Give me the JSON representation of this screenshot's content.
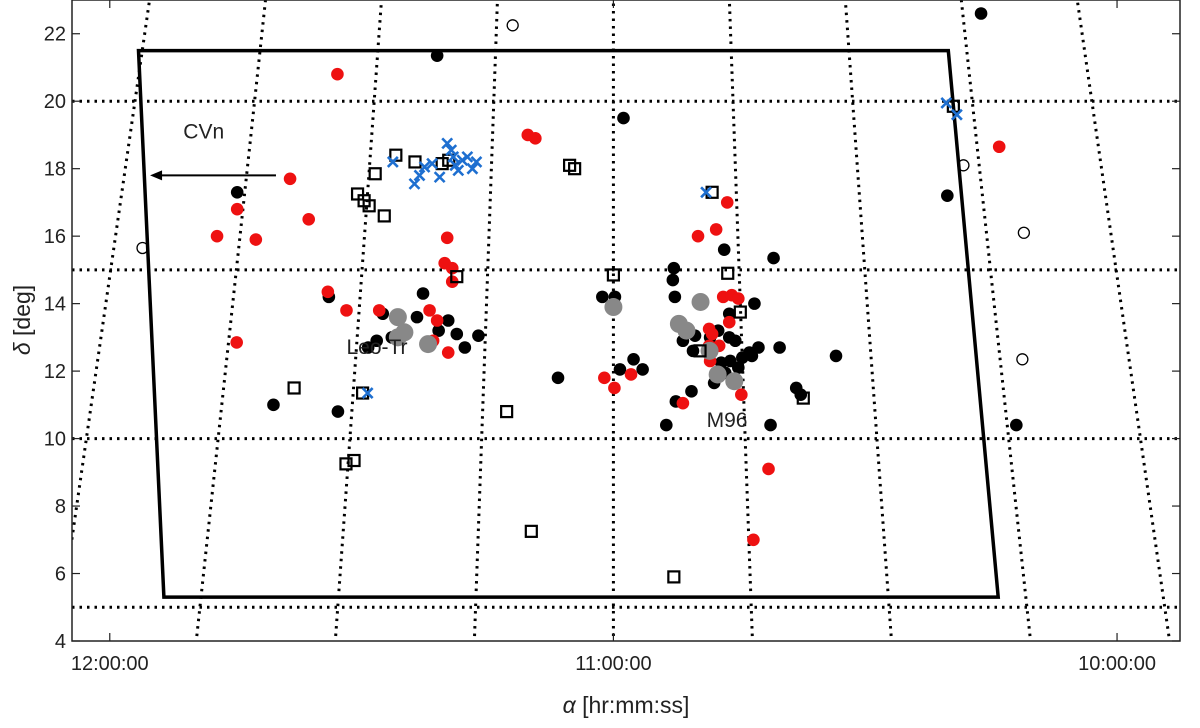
{
  "chart_data": {
    "type": "scatter",
    "xlabel_symbol": "α",
    "xlabel_text": " [hr:mm:ss]",
    "ylabel_symbol": "δ",
    "ylabel_text": " [deg]",
    "x_reversed": true,
    "xlim_hours": [
      9.875,
      12.075
    ],
    "ylim": [
      4,
      23
    ],
    "xticks": [
      {
        "value": 12.0,
        "label": "12:00:00"
      },
      {
        "value": 11.0,
        "label": "11:00:00"
      },
      {
        "value": 10.0,
        "label": "10:00:00"
      }
    ],
    "yticks": [
      4,
      6,
      8,
      10,
      12,
      14,
      16,
      18,
      20,
      22
    ],
    "grid": {
      "style": "dotted",
      "dec_lines": [
        5,
        10,
        15,
        20
      ],
      "ra_lines_hours": [
        12.0,
        11.75,
        11.5,
        11.25,
        11.0,
        10.75,
        10.5,
        10.25,
        10.0
      ]
    },
    "footprint_corners": [
      {
        "ra": 11.943,
        "dec": 21.5
      },
      {
        "ra": 10.335,
        "dec": 21.5
      },
      {
        "ra": 10.236,
        "dec": 5.3
      },
      {
        "ra": 11.8925,
        "dec": 5.3
      }
    ],
    "annotations": [
      {
        "text": "CVn",
        "ra": 11.854,
        "dec": 18.9
      },
      {
        "text": "Leo-Tr",
        "ra": 11.53,
        "dec": 12.5
      },
      {
        "text": "M96",
        "ra": 10.815,
        "dec": 10.35
      }
    ],
    "arrow": {
      "from": {
        "ra": 11.67,
        "dec": 17.8
      },
      "to": {
        "ra": 11.92,
        "dec": 17.8
      }
    },
    "colors": {
      "black": "#000000",
      "red": "#ee1111",
      "gray": "#888888",
      "blue": "#1e6fd0",
      "line": "#000000"
    },
    "series": [
      {
        "marker": "filled-circle-black",
        "points": [
          [
            11.747,
            17.3
          ],
          [
            11.35,
            21.35
          ],
          [
            10.27,
            22.6
          ],
          [
            10.337,
            17.2
          ],
          [
            10.98,
            19.5
          ],
          [
            11.565,
            14.2
          ],
          [
            11.547,
            10.8
          ],
          [
            11.675,
            11.0
          ],
          [
            11.487,
            12.7
          ],
          [
            11.47,
            12.9
          ],
          [
            11.458,
            13.7
          ],
          [
            11.44,
            13.0
          ],
          [
            11.423,
            13.0
          ],
          [
            11.39,
            13.6
          ],
          [
            11.378,
            14.3
          ],
          [
            11.347,
            13.2
          ],
          [
            11.328,
            13.5
          ],
          [
            11.311,
            13.1
          ],
          [
            11.295,
            12.7
          ],
          [
            11.268,
            13.05
          ],
          [
            11.022,
            14.2
          ],
          [
            10.997,
            14.2
          ],
          [
            11.002,
            13.9
          ],
          [
            11.11,
            11.8
          ],
          [
            10.987,
            12.05
          ],
          [
            10.96,
            12.35
          ],
          [
            10.942,
            12.05
          ],
          [
            10.895,
            10.4
          ],
          [
            10.882,
            14.7
          ],
          [
            10.88,
            15.05
          ],
          [
            10.878,
            14.2
          ],
          [
            10.876,
            11.1
          ],
          [
            10.868,
            13.45
          ],
          [
            10.862,
            12.9
          ],
          [
            10.845,
            11.4
          ],
          [
            10.842,
            12.6
          ],
          [
            10.838,
            13.05
          ],
          [
            10.827,
            14.0
          ],
          [
            10.812,
            12.65
          ],
          [
            10.808,
            13.0
          ],
          [
            10.8,
            11.65
          ],
          [
            10.792,
            13.2
          ],
          [
            10.786,
            12.25
          ],
          [
            10.78,
            15.6
          ],
          [
            10.778,
            11.95
          ],
          [
            10.77,
            13.0
          ],
          [
            10.77,
            13.7
          ],
          [
            10.768,
            12.3
          ],
          [
            10.758,
            12.9
          ],
          [
            10.752,
            12.1
          ],
          [
            10.744,
            12.4
          ],
          [
            10.73,
            12.55
          ],
          [
            10.725,
            12.45
          ],
          [
            10.72,
            14.0
          ],
          [
            10.712,
            12.7
          ],
          [
            10.688,
            10.4
          ],
          [
            10.682,
            15.35
          ],
          [
            10.67,
            12.7
          ],
          [
            10.637,
            11.5
          ],
          [
            10.628,
            11.3
          ],
          [
            10.558,
            12.45
          ],
          [
            10.2,
            10.4
          ]
        ]
      },
      {
        "marker": "filled-circle-red",
        "points": [
          [
            11.548,
            20.8
          ],
          [
            11.787,
            16.0
          ],
          [
            11.747,
            16.8
          ],
          [
            11.71,
            15.9
          ],
          [
            11.642,
            17.7
          ],
          [
            11.605,
            16.5
          ],
          [
            11.748,
            12.85
          ],
          [
            11.567,
            14.35
          ],
          [
            11.53,
            13.8
          ],
          [
            11.465,
            13.8
          ],
          [
            11.33,
            15.95
          ],
          [
            11.335,
            15.2
          ],
          [
            11.32,
            15.05
          ],
          [
            11.32,
            14.65
          ],
          [
            11.358,
            12.9
          ],
          [
            11.365,
            13.8
          ],
          [
            11.35,
            13.5
          ],
          [
            11.328,
            12.55
          ],
          [
            11.17,
            19.0
          ],
          [
            11.155,
            18.9
          ],
          [
            11.018,
            11.8
          ],
          [
            10.998,
            11.5
          ],
          [
            10.965,
            11.9
          ],
          [
            10.862,
            11.05
          ],
          [
            10.832,
            16.0
          ],
          [
            10.81,
            12.75
          ],
          [
            10.81,
            13.25
          ],
          [
            10.808,
            12.3
          ],
          [
            10.804,
            13.1
          ],
          [
            10.796,
            16.2
          ],
          [
            10.79,
            12.75
          ],
          [
            10.782,
            14.2
          ],
          [
            10.774,
            17.0
          ],
          [
            10.77,
            13.45
          ],
          [
            10.765,
            14.25
          ],
          [
            10.752,
            14.15
          ],
          [
            10.746,
            11.3
          ],
          [
            10.722,
            7.0
          ],
          [
            10.692,
            9.1
          ],
          [
            10.234,
            18.65
          ]
        ]
      },
      {
        "marker": "filled-circle-gray",
        "points": [
          [
            11.428,
            13.6
          ],
          [
            11.428,
            13.0
          ],
          [
            11.415,
            13.15
          ],
          [
            11.368,
            12.8
          ],
          [
            11.0,
            13.9
          ],
          [
            10.87,
            13.4
          ],
          [
            10.855,
            13.2
          ],
          [
            10.827,
            14.05
          ],
          [
            10.809,
            12.6
          ],
          [
            10.793,
            11.9
          ],
          [
            10.76,
            11.7
          ]
        ]
      },
      {
        "marker": "open-square-black",
        "points": [
          [
            11.634,
            11.5
          ],
          [
            11.498,
            11.35
          ],
          [
            11.531,
            9.25
          ],
          [
            11.515,
            9.35
          ],
          [
            11.432,
            18.4
          ],
          [
            11.394,
            18.2
          ],
          [
            11.455,
            16.6
          ],
          [
            11.473,
            17.85
          ],
          [
            11.508,
            17.25
          ],
          [
            11.495,
            17.05
          ],
          [
            11.485,
            16.9
          ],
          [
            11.34,
            18.15
          ],
          [
            11.327,
            18.25
          ],
          [
            11.311,
            14.8
          ],
          [
            11.212,
            10.8
          ],
          [
            11.163,
            7.25
          ],
          [
            11.087,
            18.1
          ],
          [
            11.077,
            18.0
          ],
          [
            11.0,
            14.85
          ],
          [
            10.88,
            5.9
          ],
          [
            10.828,
            12.6
          ],
          [
            10.804,
            17.3
          ],
          [
            10.773,
            14.9
          ],
          [
            10.748,
            13.75
          ],
          [
            10.623,
            11.2
          ],
          [
            10.325,
            19.85
          ]
        ]
      },
      {
        "marker": "open-circle-black",
        "points": [
          [
            11.935,
            15.65
          ],
          [
            11.2,
            22.25
          ],
          [
            10.305,
            18.1
          ],
          [
            10.185,
            16.1
          ],
          [
            10.188,
            12.35
          ]
        ]
      },
      {
        "marker": "x-blue",
        "points": [
          [
            11.438,
            18.2
          ],
          [
            11.395,
            17.55
          ],
          [
            11.385,
            17.8
          ],
          [
            11.375,
            18.05
          ],
          [
            11.36,
            18.15
          ],
          [
            11.345,
            17.75
          ],
          [
            11.33,
            18.75
          ],
          [
            11.322,
            18.55
          ],
          [
            11.318,
            18.35
          ],
          [
            11.314,
            18.1
          ],
          [
            11.308,
            17.95
          ],
          [
            11.3,
            18.25
          ],
          [
            11.29,
            18.35
          ],
          [
            11.28,
            18.0
          ],
          [
            11.272,
            18.2
          ],
          [
            11.488,
            11.35
          ],
          [
            10.339,
            19.95
          ],
          [
            10.318,
            19.6
          ],
          [
            10.816,
            17.3
          ]
        ]
      }
    ]
  }
}
